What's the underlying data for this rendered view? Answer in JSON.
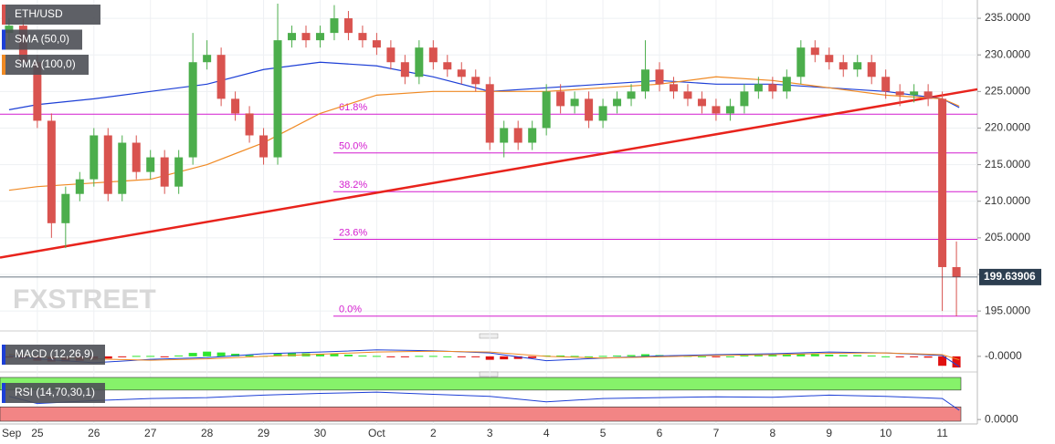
{
  "chart_data": [
    {
      "type": "candlestick",
      "candles": {
        "name": "ETH/USD",
        "up_color": "#4cae4c",
        "down_color": "#d9534f",
        "x": [
          -0.5,
          -0.25,
          0,
          0.25,
          0.5,
          0.75,
          1,
          1.25,
          1.5,
          1.75,
          2,
          2.25,
          2.5,
          2.75,
          3,
          3.25,
          3.5,
          3.75,
          4,
          4.25,
          4.5,
          4.75,
          5,
          5.25,
          5.5,
          5.75,
          6,
          6.25,
          6.5,
          6.75,
          7,
          7.25,
          7.5,
          7.75,
          8,
          8.25,
          8.5,
          8.75,
          9,
          9.25,
          9.5,
          9.75,
          10,
          10.25,
          10.5,
          10.75,
          11,
          11.25,
          11.5,
          11.75,
          12,
          12.25,
          12.5,
          12.75,
          13,
          13.25,
          13.5,
          13.75,
          14,
          14.25,
          14.5,
          14.75,
          15,
          15.25,
          15.5,
          15.75,
          16,
          16.25
        ],
        "open": [
          233,
          234,
          229,
          221,
          207,
          211,
          213,
          219,
          211,
          218,
          214,
          216,
          212,
          216,
          229,
          230,
          224,
          222,
          219,
          216,
          232,
          233,
          232,
          233,
          235,
          233,
          232,
          231,
          229,
          227,
          231,
          229,
          228,
          227,
          226,
          218,
          220,
          218,
          220,
          225,
          223,
          224,
          221,
          223,
          224,
          225,
          228,
          226,
          225,
          224,
          223,
          222,
          223,
          225,
          226,
          225,
          227,
          231,
          230,
          229,
          228,
          229,
          227,
          225,
          224.5,
          225,
          224,
          201
        ],
        "high": [
          235,
          235,
          230,
          222,
          212,
          214,
          220,
          220,
          219,
          219,
          217,
          217,
          217,
          233,
          232,
          231,
          225,
          223,
          220,
          237,
          234,
          234,
          234,
          236.8,
          236,
          234,
          233,
          232,
          230,
          232,
          232,
          230,
          229,
          228,
          227,
          221,
          221,
          221,
          226,
          226,
          225,
          225,
          224,
          225,
          226,
          232,
          229,
          227,
          226,
          225,
          224,
          224,
          226,
          227,
          227,
          228,
          232,
          232,
          231,
          230,
          230,
          230,
          228,
          226,
          226,
          226,
          225,
          204.5
        ],
        "low": [
          232,
          228,
          220,
          205,
          203.6,
          210,
          212,
          210,
          210,
          213,
          213,
          211,
          211,
          215,
          228,
          223,
          221,
          218,
          215,
          215,
          231,
          231,
          231,
          232,
          232,
          231,
          230,
          228,
          226,
          226,
          228,
          227,
          226,
          225,
          217,
          216,
          217,
          217,
          219,
          222,
          222,
          220,
          220,
          222,
          223,
          224,
          225,
          224,
          223,
          222,
          221,
          221,
          222,
          224,
          224,
          224,
          226,
          229,
          228,
          227,
          227,
          226,
          224,
          223,
          223.5,
          223,
          195,
          194.3
        ],
        "close": [
          234,
          229,
          221,
          207,
          211,
          213,
          219,
          211,
          218,
          214,
          216,
          212,
          216,
          229,
          230,
          224,
          222,
          219,
          216,
          232,
          233,
          232,
          233,
          235,
          233,
          232,
          231,
          229,
          227,
          231,
          229,
          228,
          227,
          226,
          218,
          220,
          218,
          220,
          225,
          223,
          224,
          221,
          223,
          224,
          225,
          228,
          226,
          225,
          224,
          223,
          222,
          223,
          225,
          226,
          225,
          227,
          231,
          230,
          229,
          228,
          229,
          227,
          225,
          224.5,
          225,
          224,
          201,
          199.63906
        ]
      },
      "series": [
        {
          "name": "SMA (50,0)",
          "color": "#1d3fd6",
          "x": [
            -0.5,
            0,
            1,
            2,
            3,
            4,
            5,
            6,
            7,
            8,
            9,
            10,
            11,
            12,
            13,
            14,
            15,
            16,
            16.3
          ],
          "values": [
            222.5,
            223.2,
            224,
            225,
            226,
            228,
            229,
            228.5,
            227,
            225,
            225.5,
            226,
            226.5,
            226,
            226,
            225.5,
            225,
            224,
            222.8
          ]
        },
        {
          "name": "SMA (100,0)",
          "color": "#f08a24",
          "x": [
            -0.5,
            0,
            1,
            2,
            3,
            4,
            5,
            6,
            7,
            8,
            9,
            10,
            11,
            12,
            13,
            14,
            15,
            16,
            16.3
          ],
          "values": [
            211.5,
            212,
            212.5,
            213,
            215,
            218,
            222,
            224.5,
            225,
            225,
            225,
            225.5,
            226,
            227,
            226.5,
            225.5,
            224.5,
            224,
            223
          ]
        }
      ],
      "trendline": {
        "color": "#e8231c",
        "x": [
          -0.66,
          16.62
        ],
        "values": [
          202.3,
          225.3
        ]
      },
      "fibonacci": {
        "color": "#d41ccf",
        "levels": [
          {
            "name": "61.8%",
            "price": 221.9
          },
          {
            "name": "50.0%",
            "price": 216.6
          },
          {
            "name": "38.2%",
            "price": 211.3
          },
          {
            "name": "23.6%",
            "price": 204.8
          },
          {
            "name": "0.0%",
            "price": 194.3
          }
        ]
      },
      "xlim": [
        -0.66,
        16.62
      ],
      "ylim": [
        192.4,
        237.5
      ],
      "yticks": [
        {
          "value": 195,
          "label": "195.0000"
        },
        {
          "value": 200,
          "label": "200.0000"
        },
        {
          "value": 205,
          "label": "205.0000"
        },
        {
          "value": 210,
          "label": "210.0000"
        },
        {
          "value": 215,
          "label": "215.0000"
        },
        {
          "value": 220,
          "label": "220.0000"
        },
        {
          "value": 225,
          "label": "225.0000"
        },
        {
          "value": 230,
          "label": "230.0000"
        },
        {
          "value": 235,
          "label": "235.0000"
        }
      ],
      "xticks": [
        {
          "value": 0,
          "label": "25"
        },
        {
          "value": 1,
          "label": "26"
        },
        {
          "value": 2,
          "label": "27"
        },
        {
          "value": 3,
          "label": "28"
        },
        {
          "value": 4,
          "label": "29"
        },
        {
          "value": 5,
          "label": "30"
        },
        {
          "value": 6,
          "label": "Oct"
        },
        {
          "value": 7,
          "label": "2"
        },
        {
          "value": 8,
          "label": "3"
        },
        {
          "value": 9,
          "label": "4"
        },
        {
          "value": 10,
          "label": "5"
        },
        {
          "value": 11,
          "label": "6"
        },
        {
          "value": 12,
          "label": "7"
        },
        {
          "value": 13,
          "label": "8"
        },
        {
          "value": 14,
          "label": "9"
        },
        {
          "value": 15,
          "label": "10"
        },
        {
          "value": 16,
          "label": "11"
        }
      ],
      "x_axis_month": "Sep",
      "watermark": "FXSTREET",
      "grid": true
    },
    {
      "type": "macd",
      "label": "MACD (12,26,9)",
      "ylim": [
        -3,
        4
      ],
      "yticks": [
        {
          "value": 0,
          "label": "-0.0000"
        }
      ],
      "histogram": {
        "up_color": "#2ee62e",
        "down_color": "#e01010",
        "values": [
          -0.3,
          -0.5,
          -1,
          -1.2,
          -1.2,
          -1,
          -0.8,
          -0.5,
          -0.2,
          0.1,
          0.1,
          -0.1,
          0.2,
          0.8,
          1.1,
          0.9,
          0.6,
          0.3,
          0.1,
          0.6,
          0.8,
          0.7,
          0.6,
          0.6,
          0.4,
          0.2,
          0.1,
          -0.1,
          -0.2,
          0.1,
          0.1,
          0,
          -0.1,
          -0.2,
          -0.8,
          -0.7,
          -0.6,
          -0.4,
          0.2,
          0.2,
          0.1,
          0,
          0.1,
          0.2,
          0.3,
          0.5,
          0.3,
          0.2,
          0.1,
          0,
          -0.1,
          0,
          0.2,
          0.3,
          0.3,
          0.4,
          0.6,
          0.5,
          0.4,
          0.3,
          0.3,
          0.2,
          0,
          -0.1,
          -0.2,
          -0.3,
          -2.2,
          -2.6
        ]
      },
      "x": [
        -0.5,
        0,
        1,
        2,
        3,
        4,
        5,
        6,
        7,
        8,
        9,
        10,
        11,
        12,
        13,
        14,
        15,
        16,
        16.3
      ],
      "series": [
        {
          "color": "#1d3fd6",
          "values": [
            0.2,
            -0.6,
            -1.5,
            -0.7,
            -0.3,
            0.6,
            1,
            1.5,
            1.3,
            0.8,
            -1,
            -0.4,
            0.1,
            0.4,
            0.6,
            1,
            0.8,
            0.2,
            -2.4
          ]
        },
        {
          "color": "#f08a24",
          "values": [
            0.5,
            0,
            -0.6,
            -0.9,
            -0.6,
            0,
            0.5,
            1,
            1.2,
            1,
            0,
            -0.4,
            -0.1,
            0.2,
            0.4,
            0.7,
            0.8,
            0.4,
            -0.8
          ]
        }
      ]
    },
    {
      "type": "line",
      "label": "RSI (14,70,30,1)",
      "ylim": [
        -4,
        100
      ],
      "yticks": [
        {
          "value": 0,
          "label": "0.0000"
        }
      ],
      "levels": [
        70,
        30
      ],
      "band_colors": [
        "#86f26a",
        "#f28585"
      ],
      "x": [
        -0.5,
        0,
        1,
        2,
        3,
        4,
        5,
        6,
        7,
        8,
        9,
        10,
        11,
        12,
        13,
        14,
        15,
        16,
        16.3
      ],
      "color": "#1d3fd6",
      "values": [
        55,
        38,
        45,
        50,
        52,
        58,
        62,
        65,
        60,
        55,
        42,
        50,
        52,
        54,
        53,
        58,
        55,
        50,
        22
      ]
    }
  ]
}
